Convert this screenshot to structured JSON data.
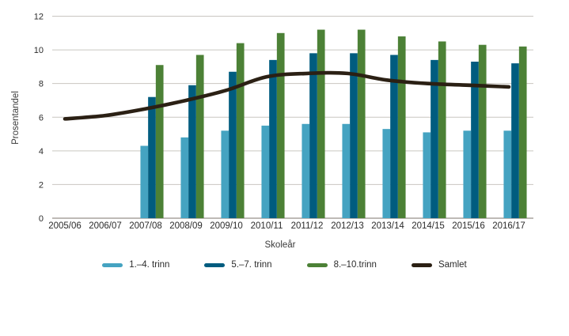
{
  "chart_data": {
    "type": "bar",
    "title": "",
    "xlabel": "Skoleår",
    "ylabel": "Prosentandel",
    "ylim": [
      0,
      12
    ],
    "ytick_step": 2,
    "grid": true,
    "legend_position": "bottom",
    "categories": [
      "2005/06",
      "2006/07",
      "2007/08",
      "2008/09",
      "2009/10",
      "2010/11",
      "2011/12",
      "2012/13",
      "2013/14",
      "2014/15",
      "2015/16",
      "2016/17"
    ],
    "series": [
      {
        "name": "1.–4. trinn",
        "type": "bar",
        "color": "#45a3c1",
        "values": [
          null,
          null,
          4.3,
          4.8,
          5.2,
          5.5,
          5.6,
          5.6,
          5.3,
          5.1,
          5.2,
          5.2
        ]
      },
      {
        "name": "5.–7. trinn",
        "type": "bar",
        "color": "#005c7f",
        "values": [
          null,
          null,
          7.2,
          7.9,
          8.7,
          9.4,
          9.8,
          9.8,
          9.7,
          9.4,
          9.3,
          9.2
        ]
      },
      {
        "name": "8.–10.trinn",
        "type": "bar",
        "color": "#4c8136",
        "values": [
          null,
          null,
          9.1,
          9.7,
          10.4,
          11.0,
          11.2,
          11.2,
          10.8,
          10.5,
          10.3,
          10.2
        ]
      },
      {
        "name": "Samlet",
        "type": "line",
        "color": "#2b2014",
        "values": [
          5.9,
          6.1,
          6.5,
          7.0,
          7.6,
          8.4,
          8.6,
          8.6,
          8.2,
          8.0,
          7.9,
          7.8
        ]
      }
    ],
    "ytick_labels": [
      "0",
      "2",
      "4",
      "6",
      "8",
      "10",
      "12"
    ]
  }
}
